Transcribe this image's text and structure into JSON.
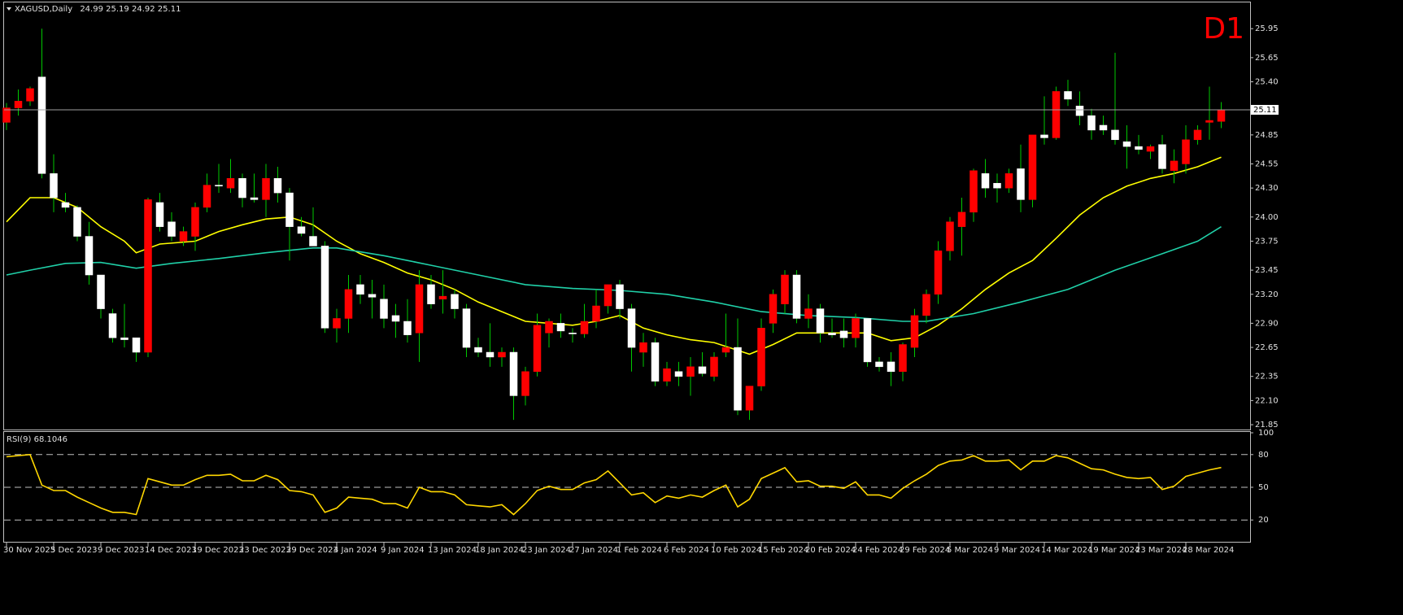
{
  "chart_data": [
    {
      "type": "candlestick",
      "title": "XAGUSD,Daily",
      "timeframe_label": "D1",
      "categories": [
        "30 Nov 2023",
        null,
        null,
        null,
        "5 Dec 2023",
        null,
        null,
        null,
        "9 Dec 2023",
        null,
        null,
        null,
        "14 Dec 2023",
        null,
        null,
        null,
        "19 Dec 2023",
        null,
        null,
        null,
        "23 Dec 2023",
        null,
        null,
        null,
        "29 Dec 2023",
        null,
        null,
        null,
        "4 Jan 2024",
        null,
        null,
        null,
        "9 Jan 2024",
        null,
        null,
        null,
        "13 Jan 2024",
        null,
        null,
        null,
        "18 Jan 2024",
        null,
        null,
        null,
        "23 Jan 2024",
        null,
        null,
        null,
        "27 Jan 2024",
        null,
        null,
        null,
        "1 Feb 2024",
        null,
        null,
        null,
        "6 Feb 2024",
        null,
        null,
        null,
        "10 Feb 2024",
        null,
        null,
        null,
        "15 Feb 2024",
        null,
        null,
        null,
        "20 Feb 2024",
        null,
        null,
        null,
        "24 Feb 2024",
        null,
        null,
        null,
        "29 Feb 2024",
        null,
        null,
        null,
        "5 Mar 2024",
        null,
        null,
        null,
        "9 Mar 2024",
        null,
        null,
        null,
        "14 Mar 2024",
        null,
        null,
        null,
        "19 Mar 2024",
        null,
        null,
        null,
        "23 Mar 2024",
        null,
        null,
        null,
        "28 Mar 2024",
        null,
        null,
        null
      ],
      "open": [
        24.98,
        25.13,
        25.2,
        25.45,
        24.45,
        24.15,
        24.1,
        23.8,
        23.4,
        23.0,
        22.75,
        22.75,
        22.6,
        24.15,
        23.95,
        23.75,
        23.8,
        24.1,
        24.33,
        24.3,
        24.4,
        24.2,
        24.18,
        24.4,
        24.25,
        23.9,
        23.8,
        23.7,
        22.85,
        22.95,
        23.3,
        23.2,
        23.15,
        22.98,
        22.92,
        22.8,
        23.3,
        23.15,
        23.2,
        23.05,
        22.65,
        22.6,
        22.55,
        22.6,
        22.15,
        22.4,
        22.8,
        22.9,
        22.8,
        22.79,
        22.92,
        23.08,
        23.3,
        23.05,
        22.6,
        22.7,
        22.3,
        22.4,
        22.35,
        22.45,
        22.35,
        22.6,
        22.65,
        22.0,
        22.25,
        22.9,
        23.1,
        23.4,
        22.95,
        23.05,
        22.8,
        22.82,
        22.75,
        22.95,
        22.5,
        22.5,
        22.4,
        22.65,
        22.98,
        23.2,
        23.65,
        23.9,
        24.05,
        24.45,
        24.35,
        24.3,
        24.5,
        24.18,
        24.85,
        24.82,
        25.3,
        25.15,
        25.05,
        24.95,
        24.9,
        24.78,
        24.73,
        24.68,
        24.75,
        24.48,
        24.55,
        24.8,
        24.98,
        24.99
      ],
      "high": [
        25.18,
        25.32,
        25.35,
        25.95,
        24.65,
        24.25,
        24.12,
        23.95,
        23.4,
        23.05,
        23.1,
        22.75,
        24.2,
        24.25,
        24.05,
        23.9,
        24.15,
        24.45,
        24.55,
        24.6,
        24.45,
        24.45,
        24.55,
        24.52,
        24.3,
        24.0,
        24.1,
        23.75,
        23.05,
        23.4,
        23.4,
        23.35,
        23.3,
        23.1,
        23.15,
        23.45,
        23.4,
        23.45,
        23.25,
        23.1,
        22.75,
        22.9,
        22.65,
        22.65,
        22.45,
        23.0,
        22.95,
        23.0,
        22.85,
        23.1,
        23.25,
        23.3,
        23.35,
        23.1,
        22.8,
        22.75,
        22.5,
        22.5,
        22.55,
        22.6,
        22.6,
        23.0,
        22.95,
        22.25,
        22.95,
        23.25,
        23.45,
        23.45,
        23.2,
        23.1,
        22.95,
        22.95,
        23.0,
        22.95,
        22.55,
        22.6,
        22.7,
        23.05,
        23.25,
        23.75,
        24.0,
        24.2,
        24.5,
        24.6,
        24.45,
        24.5,
        24.75,
        24.85,
        25.25,
        25.35,
        25.42,
        25.3,
        25.12,
        25.05,
        25.7,
        24.95,
        24.85,
        24.75,
        24.85,
        24.7,
        24.95,
        24.95,
        25.35,
        25.19
      ],
      "low": [
        24.9,
        25.05,
        25.15,
        24.4,
        24.05,
        24.05,
        23.75,
        23.3,
        22.95,
        22.7,
        22.65,
        22.5,
        22.55,
        23.85,
        23.75,
        23.7,
        23.65,
        24.05,
        24.25,
        24.25,
        24.1,
        24.15,
        24.0,
        24.15,
        23.55,
        23.8,
        23.7,
        22.8,
        22.7,
        22.8,
        23.1,
        22.95,
        22.85,
        22.75,
        22.7,
        22.5,
        23.05,
        23.0,
        22.95,
        22.55,
        22.55,
        22.45,
        22.45,
        21.9,
        22.05,
        22.35,
        22.65,
        22.75,
        22.7,
        22.75,
        22.85,
        23.0,
        22.95,
        22.4,
        22.45,
        22.25,
        22.25,
        22.25,
        22.15,
        22.35,
        22.3,
        22.55,
        21.95,
        21.9,
        22.2,
        22.8,
        23.0,
        22.9,
        22.85,
        22.7,
        22.75,
        22.65,
        22.65,
        22.45,
        22.4,
        22.25,
        22.3,
        22.55,
        22.9,
        23.1,
        23.55,
        23.6,
        23.95,
        24.2,
        24.15,
        24.25,
        24.05,
        24.1,
        24.75,
        24.8,
        25.15,
        24.95,
        24.8,
        24.85,
        24.75,
        24.5,
        24.65,
        24.6,
        24.45,
        24.35,
        24.45,
        24.75,
        24.8,
        24.92
      ],
      "close": [
        25.13,
        25.2,
        25.33,
        24.45,
        24.2,
        24.1,
        23.8,
        23.4,
        23.05,
        22.75,
        22.73,
        22.6,
        24.18,
        23.9,
        23.8,
        23.85,
        24.1,
        24.33,
        24.32,
        24.4,
        24.2,
        24.18,
        24.4,
        24.25,
        23.9,
        23.83,
        23.7,
        22.85,
        22.95,
        23.25,
        23.2,
        23.17,
        22.95,
        22.92,
        22.78,
        23.3,
        23.1,
        23.18,
        23.05,
        22.65,
        22.6,
        22.55,
        22.6,
        22.15,
        22.4,
        22.88,
        22.92,
        22.82,
        22.79,
        22.92,
        23.08,
        23.3,
        23.05,
        22.65,
        22.7,
        22.3,
        22.43,
        22.35,
        22.45,
        22.38,
        22.55,
        22.65,
        22.0,
        22.25,
        22.85,
        23.2,
        23.4,
        22.95,
        23.05,
        22.8,
        22.78,
        22.75,
        22.95,
        22.5,
        22.45,
        22.4,
        22.68,
        22.98,
        23.2,
        23.65,
        23.95,
        24.05,
        24.48,
        24.3,
        24.3,
        24.45,
        24.18,
        24.85,
        24.82,
        25.3,
        25.22,
        25.05,
        24.9,
        24.9,
        24.8,
        24.73,
        24.7,
        24.73,
        24.5,
        24.58,
        24.8,
        24.9,
        25.0,
        25.11
      ],
      "bull_color": "#ff0000",
      "bear_color": "#ffffff",
      "wick_color": "#00c800",
      "moving_averages": [
        {
          "color": "#ffff00",
          "x": [
            0,
            2,
            4,
            6,
            8,
            10,
            11,
            13,
            16,
            18,
            20,
            22,
            24,
            26,
            28,
            30,
            32,
            34,
            36,
            38,
            40,
            42,
            44,
            46,
            48,
            50,
            52,
            54,
            56,
            58,
            60,
            62,
            63,
            65,
            67,
            70,
            73,
            75,
            77,
            79,
            81,
            83,
            85,
            87,
            89,
            91,
            93,
            95,
            97,
            99,
            101,
            103
          ],
          "values": [
            23.95,
            24.2,
            24.2,
            24.1,
            23.9,
            23.75,
            23.63,
            23.72,
            23.75,
            23.85,
            23.92,
            23.98,
            24.0,
            23.92,
            23.75,
            23.62,
            23.53,
            23.42,
            23.35,
            23.25,
            23.12,
            23.02,
            22.92,
            22.9,
            22.88,
            22.92,
            22.98,
            22.85,
            22.78,
            22.73,
            22.7,
            22.62,
            22.58,
            22.68,
            22.8,
            22.8,
            22.8,
            22.72,
            22.75,
            22.88,
            23.05,
            23.25,
            23.42,
            23.55,
            23.78,
            24.02,
            24.2,
            24.32,
            24.4,
            24.45,
            24.52,
            24.62
          ]
        },
        {
          "color": "#20d0a8",
          "x": [
            0,
            2,
            5,
            8,
            11,
            14,
            18,
            22,
            26,
            28,
            32,
            36,
            40,
            44,
            48,
            52,
            56,
            60,
            64,
            68,
            72,
            76,
            78,
            82,
            86,
            90,
            94,
            98,
            101,
            103
          ],
          "values": [
            23.4,
            23.45,
            23.52,
            23.53,
            23.47,
            23.52,
            23.57,
            23.63,
            23.68,
            23.68,
            23.6,
            23.5,
            23.4,
            23.3,
            23.26,
            23.24,
            23.2,
            23.12,
            23.02,
            22.98,
            22.96,
            22.92,
            22.92,
            23.0,
            23.12,
            23.25,
            23.45,
            23.62,
            23.75,
            23.9
          ]
        }
      ],
      "ylim": [
        21.8,
        26.23
      ],
      "yticks": [
        25.95,
        25.65,
        {
          "value": 25.4,
          "label": "25.40"
        },
        24.85,
        24.55,
        {
          "value": 24.3,
          "label": "24.30"
        },
        {
          "value": 24.0,
          "label": "24.00"
        },
        23.75,
        23.45,
        {
          "value": 23.2,
          "label": "23.20"
        },
        {
          "value": 22.9,
          "label": "22.90"
        },
        22.65,
        22.35,
        {
          "value": 22.1,
          "label": "22.10"
        },
        21.85
      ]
    },
    {
      "type": "line",
      "name": "RSI(9)",
      "color": "#ffd700",
      "values": [
        78,
        79,
        80,
        52,
        47,
        47,
        41,
        36,
        31,
        27,
        27,
        25,
        58,
        55,
        52,
        52,
        57,
        61,
        61,
        62,
        56,
        56,
        61,
        57,
        47,
        46,
        43,
        27,
        31,
        41,
        40,
        39,
        35,
        35,
        31,
        50,
        46,
        46,
        43,
        34,
        33,
        32,
        34,
        25,
        35,
        47,
        51,
        48,
        48,
        54,
        57,
        65,
        54,
        43,
        45,
        36,
        42,
        40,
        43,
        41,
        47,
        52,
        32,
        39,
        58,
        63,
        68,
        55,
        56,
        51,
        51,
        49,
        55,
        43,
        43,
        40,
        49,
        56,
        62,
        70,
        74,
        75,
        79,
        74,
        74,
        75,
        66,
        74,
        74,
        79,
        77,
        72,
        67,
        66,
        62,
        59,
        58,
        59,
        48,
        51,
        60,
        63,
        66,
        68.1046
      ],
      "ylim": [
        0,
        100
      ],
      "yticks": [
        100,
        80,
        50,
        20
      ],
      "levels": [
        80,
        50,
        20
      ]
    }
  ]
}
